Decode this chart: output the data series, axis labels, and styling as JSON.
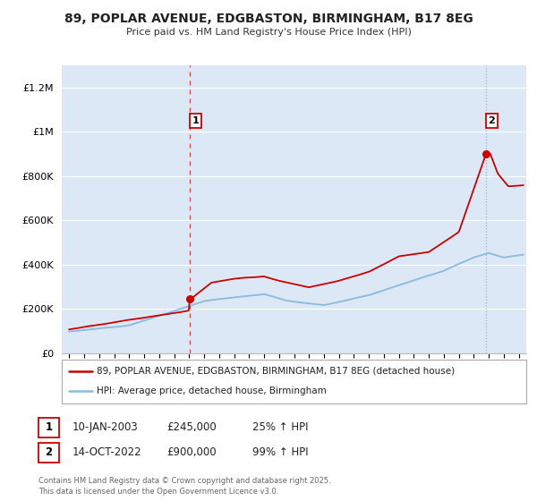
{
  "title": "89, POPLAR AVENUE, EDGBASTON, BIRMINGHAM, B17 8EG",
  "subtitle": "Price paid vs. HM Land Registry's House Price Index (HPI)",
  "ylabel_ticks": [
    "£0",
    "£200K",
    "£400K",
    "£600K",
    "£800K",
    "£1M",
    "£1.2M"
  ],
  "ytick_values": [
    0,
    200000,
    400000,
    600000,
    800000,
    1000000,
    1200000
  ],
  "ylim": [
    0,
    1300000
  ],
  "xlim_start": 1994.5,
  "xlim_end": 2025.5,
  "property_color": "#cc0000",
  "hpi_color": "#88bbdd",
  "marker1_date": 2003.03,
  "marker1_value": 245000,
  "marker2_date": 2022.79,
  "marker2_value": 900000,
  "annotation1_label": "1",
  "annotation2_label": "2",
  "legend_property": "89, POPLAR AVENUE, EDGBASTON, BIRMINGHAM, B17 8EG (detached house)",
  "legend_hpi": "HPI: Average price, detached house, Birmingham",
  "table_row1": [
    "1",
    "10-JAN-2003",
    "£245,000",
    "25% ↑ HPI"
  ],
  "table_row2": [
    "2",
    "14-OCT-2022",
    "£900,000",
    "99% ↑ HPI"
  ],
  "footnote": "Contains HM Land Registry data © Crown copyright and database right 2025.\nThis data is licensed under the Open Government Licence v3.0.",
  "bg_color": "#ffffff",
  "plot_bg_color": "#dce8f5",
  "grid_color": "#ffffff"
}
